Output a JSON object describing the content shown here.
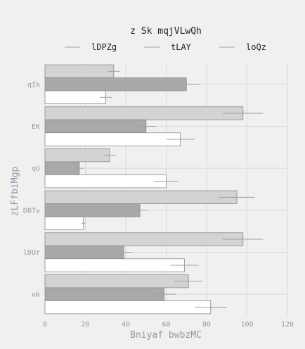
{
  "chart_data": {
    "type": "bar",
    "orientation": "horizontal",
    "title": "z Sk mqjVLwQh",
    "xlabel": "Bniyaf bwbzMC",
    "ylabel": "zLFfbiMgp",
    "xlim": [
      0,
      120
    ],
    "xticks": [
      "0",
      "20",
      "40",
      "60",
      "80",
      "100",
      "120"
    ],
    "grid": true,
    "legend": "top-center",
    "categories": [
      "qIk",
      "EK",
      "qU",
      "DBTv",
      "lDUr",
      "uk"
    ],
    "series": [
      {
        "name": "lDPZg",
        "color": "#d3d3d3",
        "values": [
          34,
          98,
          32,
          95,
          98,
          71
        ],
        "errors": [
          3,
          10,
          3,
          9,
          10,
          7
        ]
      },
      {
        "name": "tLAY",
        "color": "#a9a9a9",
        "values": [
          70,
          50,
          17,
          47,
          39,
          59
        ],
        "errors": [
          7,
          5,
          2,
          4,
          4,
          6
        ]
      },
      {
        "name": "loQz",
        "color": "#ffffff",
        "values": [
          30,
          67,
          60,
          19,
          69,
          82
        ],
        "errors": [
          3,
          7,
          6,
          1,
          7,
          8
        ]
      }
    ]
  }
}
